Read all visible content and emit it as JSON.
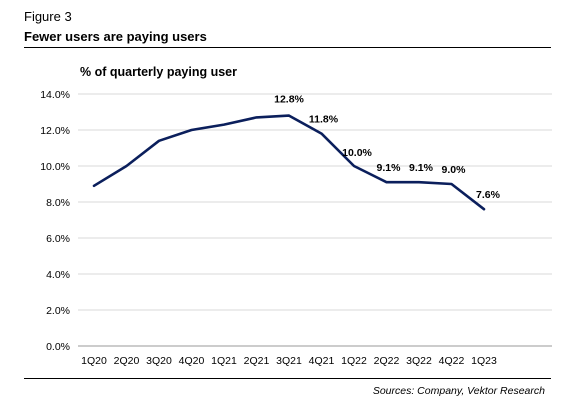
{
  "figure_label": "Figure 3",
  "figure_title": "Fewer users are paying users",
  "source": "Sources: Company, Vektor Research",
  "chart_data": {
    "type": "line",
    "title": "% of quarterly paying user",
    "xlabel": "",
    "ylabel": "",
    "categories": [
      "1Q20",
      "2Q20",
      "3Q20",
      "4Q20",
      "1Q21",
      "2Q21",
      "3Q21",
      "4Q21",
      "1Q22",
      "2Q22",
      "3Q22",
      "4Q22",
      "1Q23"
    ],
    "series": [
      {
        "values": [
          8.9,
          10.0,
          11.4,
          12.0,
          12.3,
          12.7,
          12.8,
          11.8,
          10.0,
          9.1,
          9.1,
          9.0,
          7.6
        ]
      }
    ],
    "data_labels": [
      "",
      "",
      "",
      "",
      "",
      "",
      "12.8%",
      "11.8%",
      "10.0%",
      "9.1%",
      "9.1%",
      "9.0%",
      "7.6%"
    ],
    "ylim": [
      0,
      14
    ],
    "yticks": [
      0,
      2,
      4,
      6,
      8,
      10,
      12,
      14
    ],
    "ytick_labels": [
      "0.0%",
      "2.0%",
      "4.0%",
      "6.0%",
      "8.0%",
      "10.0%",
      "12.0%",
      "14.0%"
    ],
    "grid": true,
    "line_color": "#0b1f5c",
    "grid_color": "#d9d9d9"
  }
}
